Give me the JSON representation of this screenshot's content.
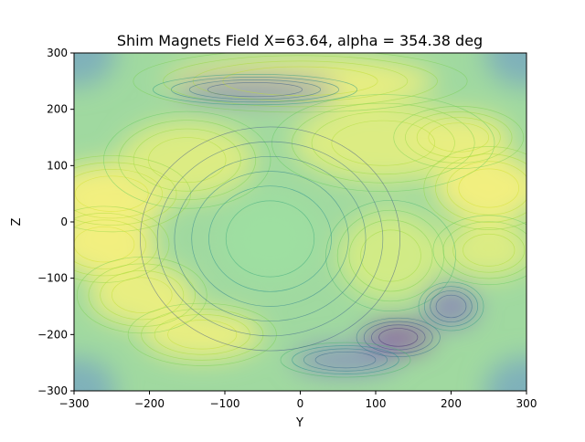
{
  "chart_data": {
    "type": "heatmap",
    "title": "Shim Magnets Field X=63.64, alpha = 354.38 deg",
    "xlabel": "Y",
    "ylabel": "Z",
    "xlim": [
      -300,
      300
    ],
    "ylim": [
      -300,
      300
    ],
    "xticks": [
      -300,
      -200,
      -100,
      0,
      100,
      200,
      300
    ],
    "yticks": [
      -300,
      -200,
      -100,
      0,
      100,
      200,
      300
    ],
    "xtick_labels": [
      "−300",
      "−200",
      "−100",
      "0",
      "100",
      "200",
      "300"
    ],
    "ytick_labels": [
      "−300",
      "−200",
      "−100",
      "0",
      "100",
      "200",
      "300"
    ],
    "colormap": "viridis",
    "grid": false,
    "legend": "none",
    "features": [
      {
        "kind": "high",
        "y": -250,
        "z": 50,
        "w": 85,
        "h": 55,
        "level": 0.95
      },
      {
        "kind": "high",
        "y": -260,
        "z": -40,
        "w": 70,
        "h": 55,
        "level": 0.95
      },
      {
        "kind": "high",
        "y": -210,
        "z": -130,
        "w": 70,
        "h": 55,
        "level": 0.9
      },
      {
        "kind": "high",
        "y": -130,
        "z": -200,
        "w": 80,
        "h": 45,
        "level": 0.9
      },
      {
        "kind": "high",
        "y": -150,
        "z": 110,
        "w": 90,
        "h": 70,
        "level": 0.85
      },
      {
        "kind": "high",
        "y": 110,
        "z": 140,
        "w": 120,
        "h": 70,
        "level": 0.85
      },
      {
        "kind": "high",
        "y": 250,
        "z": 60,
        "w": 70,
        "h": 60,
        "level": 0.95
      },
      {
        "kind": "high",
        "y": 210,
        "z": 150,
        "w": 70,
        "h": 45,
        "level": 0.9
      },
      {
        "kind": "high",
        "y": 250,
        "z": -50,
        "w": 60,
        "h": 50,
        "level": 0.85
      },
      {
        "kind": "high",
        "y": 120,
        "z": -60,
        "w": 70,
        "h": 80,
        "level": 0.8
      },
      {
        "kind": "high",
        "y": 0,
        "z": 250,
        "w": 180,
        "h": 45,
        "level": 0.9
      },
      {
        "kind": "low",
        "y": -60,
        "z": 235,
        "w": 110,
        "h": 22,
        "level": 0.2
      },
      {
        "kind": "low",
        "y": 130,
        "z": -205,
        "w": 45,
        "h": 28,
        "level": 0.05
      },
      {
        "kind": "low",
        "y": 200,
        "z": -150,
        "w": 35,
        "h": 35,
        "level": 0.2
      },
      {
        "kind": "low",
        "y": 60,
        "z": -245,
        "w": 70,
        "h": 25,
        "level": 0.25
      },
      {
        "kind": "center",
        "y": -40,
        "z": -30,
        "w": 65,
        "h": 75,
        "level": 0.6
      }
    ]
  }
}
